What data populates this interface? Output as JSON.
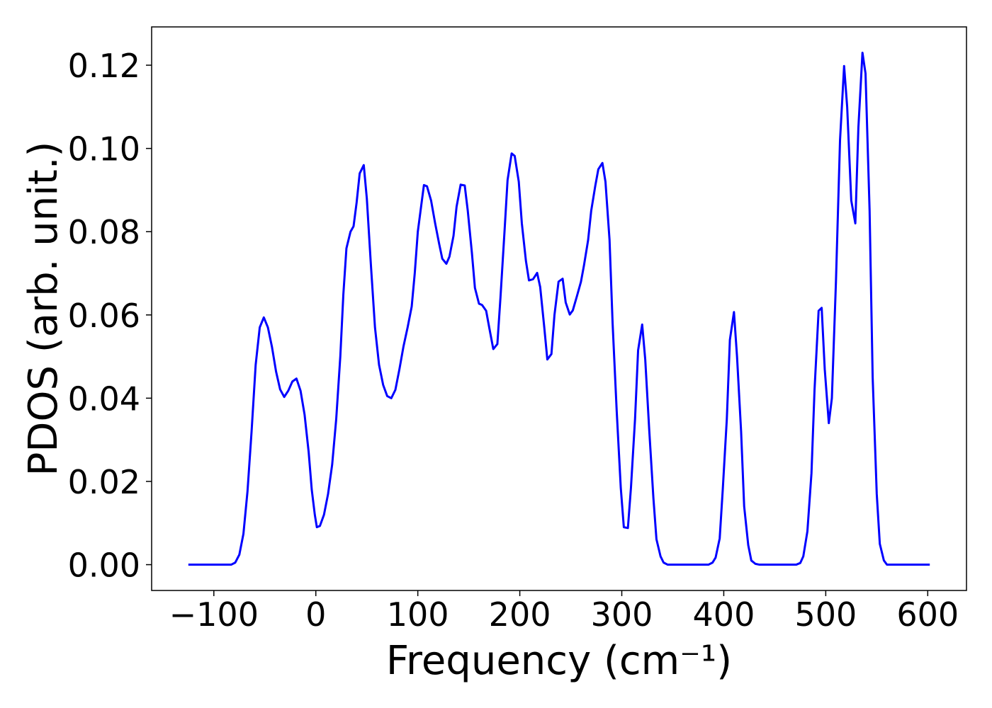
{
  "chart_data": {
    "type": "line",
    "xlabel": "Frequency (cm⁻¹)",
    "ylabel": "PDOS (arb. unit.)",
    "color": "#0000ff",
    "xlim": [
      -161,
      638
    ],
    "ylim": [
      -0.0062,
      0.1292
    ],
    "xticks": [
      {
        "value": -100,
        "label": "−100"
      },
      0,
      100,
      200,
      300,
      400,
      500,
      600
    ],
    "yticks": [
      {
        "value": 0,
        "label": "0.00"
      },
      {
        "value": 0.02,
        "label": "0.02"
      },
      {
        "value": 0.04,
        "label": "0.04"
      },
      {
        "value": 0.06,
        "label": "0.06"
      },
      {
        "value": 0.08,
        "label": "0.08"
      },
      {
        "value": 0.1,
        "label": "0.10"
      },
      {
        "value": 0.12,
        "label": "0.12"
      }
    ],
    "x": [
      -125,
      -83,
      -79,
      -75,
      -71,
      -67,
      -63,
      -59,
      -55,
      -51,
      -47,
      -43,
      -39,
      -35,
      -31,
      -27,
      -23,
      -19,
      -15,
      -11,
      -7,
      -4,
      -1,
      1,
      4,
      8,
      12,
      16,
      20,
      24,
      27,
      30,
      34,
      37,
      40,
      43,
      47,
      50,
      54,
      58,
      62,
      66,
      70,
      74,
      78,
      82,
      86,
      90,
      94,
      97,
      100,
      104,
      106,
      109,
      113,
      117,
      121,
      124,
      128,
      131,
      135,
      138,
      142,
      146,
      149,
      153,
      156,
      160,
      163,
      167,
      170,
      174,
      178,
      181,
      185,
      188,
      192,
      195,
      199,
      202,
      206,
      209,
      213,
      217,
      220,
      224,
      227,
      231,
      234,
      238,
      242,
      245,
      249,
      252,
      256,
      260,
      263,
      267,
      270,
      274,
      277,
      281,
      284,
      288,
      291,
      295,
      299,
      302,
      306,
      309,
      313,
      316,
      320,
      323,
      327,
      331,
      334,
      338,
      341,
      345,
      385,
      389,
      392,
      396,
      399,
      403,
      406,
      410,
      413,
      417,
      420,
      424,
      427,
      431,
      435,
      471,
      475,
      478,
      482,
      486,
      489,
      493,
      496,
      499,
      503,
      506,
      510,
      514,
      518,
      521,
      525,
      529,
      532,
      536,
      539,
      543,
      546,
      550,
      553,
      557,
      560,
      602
    ],
    "values": [
      0,
      0,
      0.0005,
      0.0024,
      0.0074,
      0.0176,
      0.032,
      0.048,
      0.057,
      0.0594,
      0.057,
      0.0523,
      0.0464,
      0.0421,
      0.0403,
      0.0418,
      0.044,
      0.0447,
      0.0418,
      0.036,
      0.027,
      0.018,
      0.012,
      0.009,
      0.0093,
      0.012,
      0.017,
      0.024,
      0.035,
      0.05,
      0.065,
      0.076,
      0.08,
      0.0813,
      0.087,
      0.094,
      0.096,
      0.088,
      0.072,
      0.057,
      0.048,
      0.0432,
      0.0405,
      0.04,
      0.042,
      0.047,
      0.0525,
      0.057,
      0.062,
      0.07,
      0.08,
      0.0875,
      0.0912,
      0.0909,
      0.0875,
      0.082,
      0.077,
      0.0735,
      0.0723,
      0.074,
      0.079,
      0.086,
      0.0913,
      0.0911,
      0.085,
      0.075,
      0.0665,
      0.0627,
      0.0624,
      0.061,
      0.057,
      0.0518,
      0.053,
      0.064,
      0.08,
      0.0924,
      0.0988,
      0.0982,
      0.092,
      0.082,
      0.073,
      0.0683,
      0.0686,
      0.0701,
      0.0667,
      0.057,
      0.0493,
      0.0506,
      0.06,
      0.068,
      0.0687,
      0.063,
      0.0601,
      0.0611,
      0.0645,
      0.068,
      0.072,
      0.078,
      0.085,
      0.091,
      0.095,
      0.0965,
      0.092,
      0.078,
      0.058,
      0.037,
      0.0185,
      0.009,
      0.0088,
      0.0185,
      0.035,
      0.0515,
      0.0577,
      0.0493,
      0.032,
      0.016,
      0.0061,
      0.002,
      0.0005,
      0,
      0,
      0.0005,
      0.0017,
      0.0063,
      0.018,
      0.035,
      0.054,
      0.0607,
      0.05,
      0.032,
      0.014,
      0.0047,
      0.001,
      0.0002,
      0,
      0,
      0.0004,
      0.002,
      0.008,
      0.022,
      0.042,
      0.061,
      0.0617,
      0.047,
      0.034,
      0.04,
      0.068,
      0.102,
      0.1198,
      0.11,
      0.0875,
      0.082,
      0.105,
      0.123,
      0.118,
      0.085,
      0.045,
      0.017,
      0.005,
      0.001,
      0,
      0
    ]
  }
}
